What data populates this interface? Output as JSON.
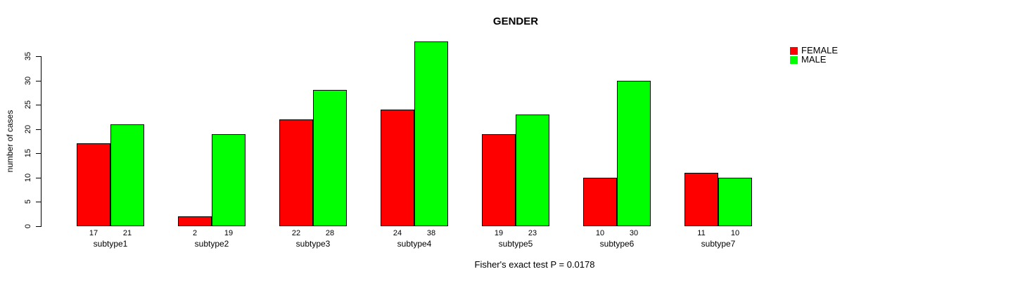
{
  "figure": {
    "title": "GENDER",
    "ylabel": "number of cases",
    "caption": "Fisher's exact test P = 0.0178"
  },
  "legend": {
    "items": [
      {
        "label": "FEMALE",
        "color": "#ff0000"
      },
      {
        "label": "MALE",
        "color": "#00ff00"
      }
    ]
  },
  "chart_data": {
    "type": "bar",
    "title": "GENDER",
    "xlabel": "",
    "ylabel": "number of cases",
    "categories": [
      "subtype1",
      "subtype2",
      "subtype3",
      "subtype4",
      "subtype5",
      "subtype6",
      "subtype7"
    ],
    "series": [
      {
        "name": "FEMALE",
        "color": "#ff0000",
        "values": [
          17,
          2,
          22,
          24,
          19,
          10,
          11
        ]
      },
      {
        "name": "MALE",
        "color": "#00ff00",
        "values": [
          21,
          19,
          28,
          38,
          23,
          30,
          10
        ]
      }
    ],
    "yticks": [
      0,
      5,
      10,
      15,
      20,
      25,
      30,
      35
    ],
    "ylim": [
      0,
      38
    ],
    "bar_value_labels": true,
    "grid": false,
    "legend_position": "top-right-outside",
    "annotation": "Fisher's exact test P = 0.0178"
  }
}
